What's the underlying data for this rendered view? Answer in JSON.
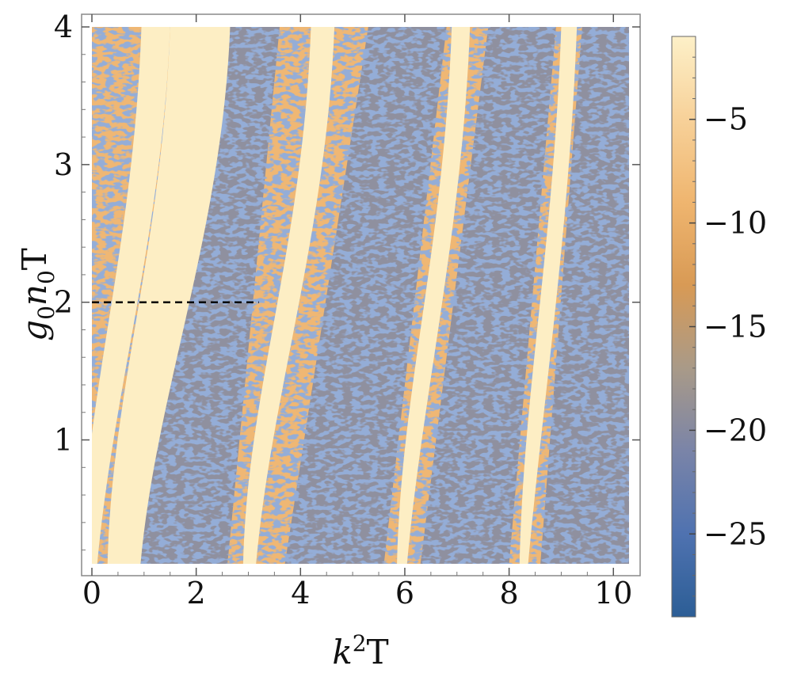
{
  "chart_data": {
    "type": "heatmap",
    "title": "",
    "xlabel": {
      "base": "k",
      "sup": "2",
      "tail": "T"
    },
    "ylabel": {
      "g": "g",
      "g_sub": "0",
      "n": "n",
      "n_sub": "0",
      "tail": "T"
    },
    "xlim": [
      0,
      10.3
    ],
    "ylim": [
      0.1,
      4
    ],
    "xticks": [
      {
        "value": 0,
        "label": "0"
      },
      {
        "value": 2,
        "label": "2"
      },
      {
        "value": 4,
        "label": "4"
      },
      {
        "value": 6,
        "label": "6"
      },
      {
        "value": 8,
        "label": "8"
      },
      {
        "value": 10,
        "label": "10"
      }
    ],
    "yticks": [
      {
        "value": 1,
        "label": "1"
      },
      {
        "value": 2,
        "label": "2"
      },
      {
        "value": 3,
        "label": "3"
      },
      {
        "value": 4,
        "label": "4"
      }
    ],
    "colorbar": {
      "range": [
        -29,
        -1
      ],
      "ticks": [
        {
          "value": -5,
          "label": "−5"
        },
        {
          "value": -10,
          "label": "−10"
        },
        {
          "value": -15,
          "label": "−15"
        },
        {
          "value": -20,
          "label": "−20"
        },
        {
          "value": -25,
          "label": "−25"
        }
      ],
      "colors": [
        "#2c5e96",
        "#4f72b0",
        "#7a84a8",
        "#a99a88",
        "#d89a55",
        "#efb56f",
        "#f7d199",
        "#fdf0c8"
      ],
      "position": "right"
    },
    "stable_bands": [
      {
        "x_at_top": 0.95,
        "x_at_bottom": -0.2,
        "width": 0.55
      },
      {
        "x_at_top": 1.5,
        "x_at_bottom": 0.3,
        "width": 1.15
      },
      {
        "x_at_top": 4.2,
        "x_at_bottom": 2.9,
        "width": 0.45
      },
      {
        "x_at_top": 6.9,
        "x_at_bottom": 5.85,
        "width": 0.35
      },
      {
        "x_at_top": 9.0,
        "x_at_bottom": 8.2,
        "width": 0.3
      }
    ],
    "annotation": {
      "type": "dashed-line",
      "y": 2,
      "x_start": 0,
      "x_end": 3.2,
      "color": "#000000"
    },
    "grid": false
  }
}
